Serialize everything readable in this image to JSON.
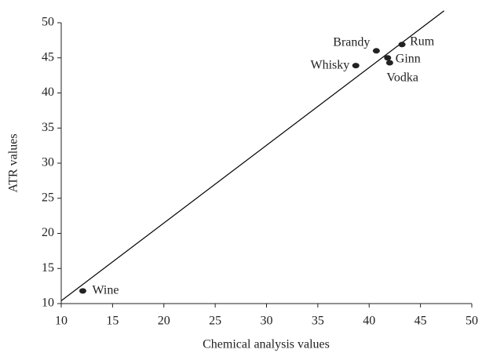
{
  "chart_data": {
    "type": "scatter",
    "xlabel": "Chemical analysis values",
    "ylabel": "ATR values",
    "x": [
      12.1,
      38.7,
      40.7,
      41.8,
      42.0,
      43.2
    ],
    "y": [
      11.8,
      43.9,
      46.0,
      45.0,
      44.3,
      46.9
    ],
    "labels": [
      "Wine",
      "Whisky",
      "Brandy",
      "Ginn",
      "Vodka",
      "Rum"
    ],
    "color": "#222222",
    "fit_line": {
      "x": [
        10,
        47.3
      ],
      "y": [
        10.4,
        51.7
      ],
      "color": "#000000"
    },
    "xlim": [
      10,
      50
    ],
    "ylim": [
      10,
      50
    ],
    "xticks": [
      10,
      15,
      20,
      25,
      30,
      35,
      40,
      45,
      50
    ],
    "yticks": [
      10,
      15,
      20,
      25,
      30,
      35,
      40,
      45,
      50
    ]
  }
}
